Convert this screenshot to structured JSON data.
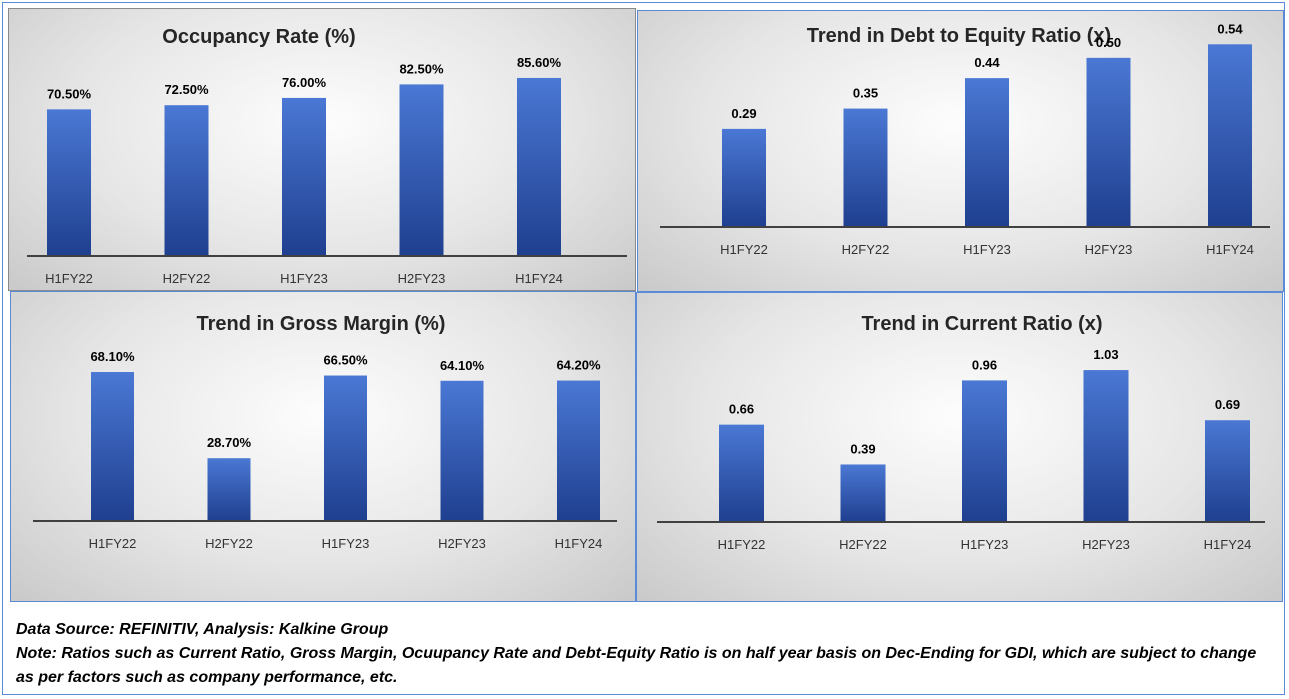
{
  "chart_data": [
    {
      "id": "occupancy",
      "type": "bar",
      "title": "Occupancy Rate (%)",
      "categories": [
        "H1FY22",
        "H2FY22",
        "H1FY23",
        "H2FY23",
        "H1FY24"
      ],
      "values": [
        70.5,
        72.5,
        76.0,
        82.5,
        85.6
      ],
      "data_labels": [
        "70.50%",
        "72.50%",
        "76.00%",
        "82.50%",
        "85.60%"
      ],
      "ylim": [
        0,
        100
      ]
    },
    {
      "id": "debt_equity",
      "type": "bar",
      "title": "Trend in Debt to Equity Ratio (x)",
      "categories": [
        "H1FY22",
        "H2FY22",
        "H1FY23",
        "H2FY23",
        "H1FY24"
      ],
      "values": [
        0.29,
        0.35,
        0.44,
        0.5,
        0.54
      ],
      "data_labels": [
        "0.29",
        "0.35",
        "0.44",
        "0.50",
        "0.54"
      ],
      "ylim": [
        0,
        0.6
      ]
    },
    {
      "id": "gross_margin",
      "type": "bar",
      "title": "Trend in Gross Margin (%)",
      "categories": [
        "H1FY22",
        "H2FY22",
        "H1FY23",
        "H2FY23",
        "H1FY24"
      ],
      "values": [
        68.1,
        28.7,
        66.5,
        64.1,
        64.2
      ],
      "data_labels": [
        "68.10%",
        "28.70%",
        "66.50%",
        "64.10%",
        "64.20%"
      ],
      "ylim": [
        0,
        80
      ]
    },
    {
      "id": "current_ratio",
      "type": "bar",
      "title": "Trend in Current Ratio (x)",
      "categories": [
        "H1FY22",
        "H2FY22",
        "H1FY23",
        "H2FY23",
        "H1FY24"
      ],
      "values": [
        0.66,
        0.39,
        0.96,
        1.03,
        0.69
      ],
      "data_labels": [
        "0.66",
        "0.39",
        "0.96",
        "1.03",
        "0.69"
      ],
      "ylim": [
        0,
        1.2
      ]
    }
  ],
  "footer": {
    "source": "Data Source: REFINITIV, Analysis: Kalkine Group",
    "note": "Note: Ratios such as Current Ratio, Gross Margin, Ocuupancy Rate and Debt-Equity Ratio is on half year basis on Dec-Ending for GDI, which are subject to change as per factors such as company performance, etc."
  },
  "colors": {
    "bar_top": "#4a78d4",
    "bar_bottom": "#1f3f8f",
    "axis": "#404040",
    "border": "#5b8bd6"
  }
}
